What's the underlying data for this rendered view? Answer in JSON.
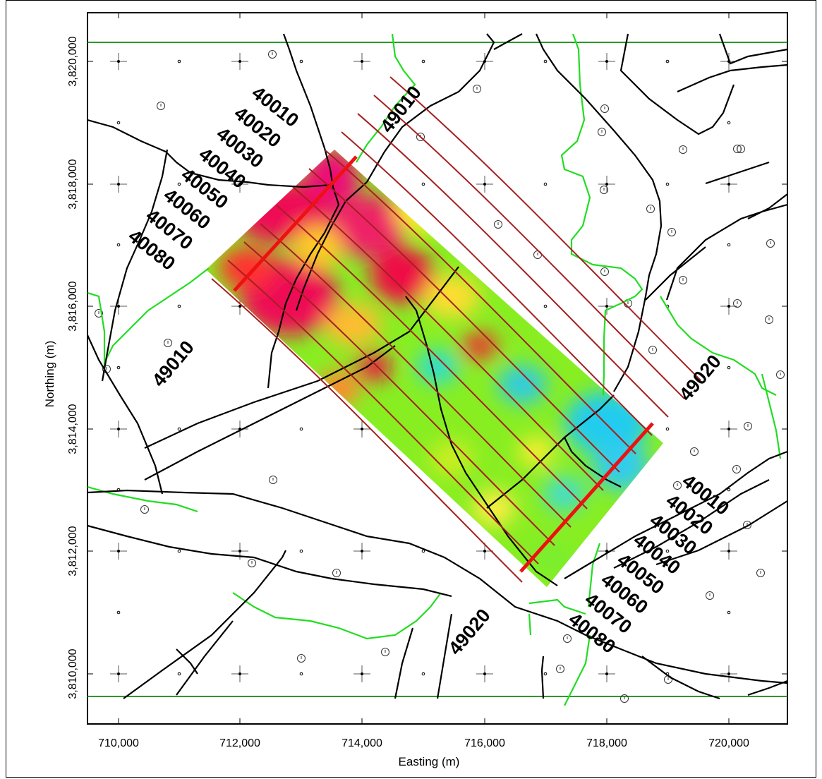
{
  "map": {
    "xlabel": "Easting (m)",
    "ylabel": "Northing (m)",
    "x_ticks": [
      "710,000",
      "712,000",
      "714,000",
      "716,000",
      "718,000",
      "720,000"
    ],
    "y_ticks": [
      "3,820,000",
      "3,818,000",
      "3,816,000",
      "3,814,000",
      "3,812,000",
      "3,810,000"
    ],
    "line_labels_nw": [
      "40010",
      "40020",
      "40030",
      "40040",
      "40050",
      "40060",
      "40070",
      "40080"
    ],
    "line_labels_se": [
      "40010",
      "40020",
      "40030",
      "40040",
      "40050",
      "40060",
      "40070",
      "40080"
    ],
    "tie_labels": [
      "49010",
      "49010",
      "49020",
      "49020"
    ],
    "colors": {
      "survey_line": "#a51f1f",
      "tie_line": "#ee1111",
      "road": "#000000",
      "stream": "#22dd22",
      "frame_line": "#2a9a2a",
      "anomaly_high": "#ee1155",
      "anomaly_mid": "#88ee22",
      "anomaly_low": "#22ccee"
    }
  }
}
